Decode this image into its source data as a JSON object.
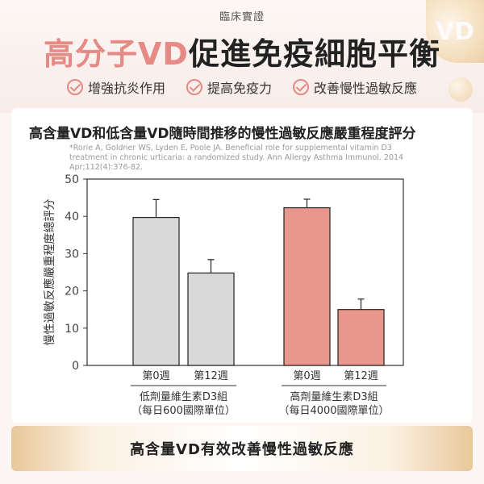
{
  "header": {
    "eyebrow": "臨床實證",
    "headline_accent": "高分子VD",
    "headline_rest": "促進免疫細胞平衡",
    "badge_text": "VD"
  },
  "benefits": [
    {
      "label": "增強抗炎作用",
      "icon": "check-circle-icon"
    },
    {
      "label": "提高免疫力",
      "icon": "check-circle-icon"
    },
    {
      "label": "改善慢性過敏反應",
      "icon": "check-circle-icon"
    }
  ],
  "citation": "*Rorie A, Goldner WS, Lyden E, Poole JA. Beneficial role for supplemental vitamin D3 treatment in chronic urticaria: a randomized study. Ann Allergy Asthma Immunol. 2014 Apr;112(4):376-82.",
  "banner": {
    "text": "高含量VD有效改善慢性過敏反應"
  },
  "colors": {
    "accent": "#e58a85",
    "low_bar": "#d9d9d9",
    "high_bar": "#e9978c"
  },
  "chart_data": {
    "type": "bar",
    "title": "高含量VD和低含量VD隨時間推移的慢性過敏反應嚴重程度評分",
    "xlabel": "",
    "ylabel": "慢性過敏反應嚴重程度總評分",
    "ylim": [
      0,
      50
    ],
    "yticks": [
      0,
      10,
      20,
      30,
      40,
      50
    ],
    "grid": false,
    "groups": [
      {
        "name": "低劑量維生素D3組",
        "sub": "（每日600國際單位）",
        "color": "#d9d9d9",
        "bars": [
          {
            "category": "第0週",
            "value": 39.7,
            "error": 4.8
          },
          {
            "category": "第12週",
            "value": 24.8,
            "error": 3.6
          }
        ]
      },
      {
        "name": "高劑量維生素D3組",
        "sub": "（每日4000國際單位）",
        "color": "#e9978c",
        "bars": [
          {
            "category": "第0週",
            "value": 42.3,
            "error": 2.3
          },
          {
            "category": "第12週",
            "value": 15.0,
            "error": 2.8
          }
        ]
      }
    ]
  }
}
